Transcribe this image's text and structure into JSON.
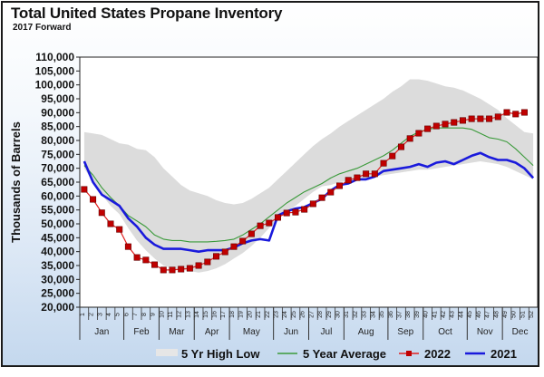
{
  "chart_data": {
    "type": "line",
    "title": "Total United States Propane Inventory",
    "subtitle": "2017 Forward",
    "xlabel": "",
    "ylabel": "Thousands of Barrels",
    "ylim": [
      20000,
      110000
    ],
    "yticks": [
      20000,
      25000,
      30000,
      35000,
      40000,
      45000,
      50000,
      55000,
      60000,
      65000,
      70000,
      75000,
      80000,
      85000,
      90000,
      95000,
      100000,
      105000,
      110000
    ],
    "ytick_labels": [
      "20,000",
      "25,000",
      "30,000",
      "35,000",
      "40,000",
      "45,000",
      "50,000",
      "55,000",
      "60,000",
      "65,000",
      "70,000",
      "75,000",
      "80,000",
      "85,000",
      "90,000",
      "95,000",
      "100,000",
      "105,000",
      "110,000"
    ],
    "x_weeks": [
      1,
      2,
      3,
      4,
      5,
      6,
      7,
      8,
      9,
      10,
      11,
      12,
      13,
      14,
      15,
      16,
      17,
      18,
      19,
      20,
      21,
      22,
      23,
      24,
      25,
      26,
      27,
      28,
      29,
      30,
      31,
      32,
      33,
      34,
      35,
      36,
      37,
      38,
      39,
      40,
      41,
      42,
      43,
      44,
      45,
      46,
      47,
      48,
      49,
      50,
      51,
      52
    ],
    "months": [
      {
        "label": "Jan",
        "start_week": 1,
        "end_week": 5
      },
      {
        "label": "Feb",
        "start_week": 6,
        "end_week": 9
      },
      {
        "label": "Mar",
        "start_week": 10,
        "end_week": 13
      },
      {
        "label": "Apr",
        "start_week": 14,
        "end_week": 17
      },
      {
        "label": "May",
        "start_week": 18,
        "end_week": 22
      },
      {
        "label": "Jun",
        "start_week": 23,
        "end_week": 26
      },
      {
        "label": "Jul",
        "start_week": 27,
        "end_week": 30
      },
      {
        "label": "Aug",
        "start_week": 31,
        "end_week": 35
      },
      {
        "label": "Sep",
        "start_week": 36,
        "end_week": 39
      },
      {
        "label": "Oct",
        "start_week": 40,
        "end_week": 44
      },
      {
        "label": "Nov",
        "start_week": 45,
        "end_week": 48
      },
      {
        "label": "Dec",
        "start_week": 49,
        "end_week": 52
      }
    ],
    "grid": false,
    "legend_position": "bottom",
    "series": [
      {
        "name": "5 Yr High Low",
        "kind": "band",
        "color": "#dcdcdc",
        "high": [
          83000,
          82500,
          82000,
          80500,
          79000,
          78500,
          77000,
          76500,
          74000,
          70000,
          67000,
          64000,
          62000,
          61000,
          60000,
          58500,
          57500,
          57000,
          57500,
          59000,
          61000,
          63000,
          66000,
          69000,
          72000,
          75000,
          78000,
          80500,
          82500,
          85000,
          87000,
          89000,
          91000,
          93000,
          95000,
          97500,
          99500,
          102000,
          102000,
          101500,
          100500,
          99500,
          99000,
          98000,
          96500,
          95000,
          93000,
          91000,
          88000,
          85500,
          83000,
          82500
        ],
        "low": [
          70000,
          65000,
          60500,
          56500,
          53500,
          48500,
          44000,
          40500,
          37500,
          35000,
          34000,
          33500,
          33000,
          32500,
          33000,
          34000,
          35500,
          37500,
          39500,
          42000,
          45000,
          48500,
          51500,
          54500,
          56500,
          59000,
          61500,
          63500,
          64000,
          65000,
          65500,
          66000,
          66500,
          67000,
          67500,
          68000,
          68500,
          69000,
          69500,
          69500,
          70000,
          70500,
          71000,
          71500,
          72000,
          72500,
          72000,
          71500,
          70500,
          69000,
          67500,
          66000
        ]
      },
      {
        "name": "5 Year Average",
        "kind": "line",
        "color": "#3a9a3a",
        "values": [
          71000,
          67500,
          63000,
          59500,
          56500,
          53000,
          51000,
          49000,
          46000,
          44500,
          44000,
          44000,
          43500,
          43500,
          43500,
          43700,
          44000,
          44500,
          46000,
          48000,
          50000,
          52500,
          55000,
          57500,
          59500,
          61500,
          63000,
          64500,
          66500,
          68000,
          69000,
          70000,
          71500,
          73000,
          74500,
          76500,
          79000,
          81500,
          83000,
          84000,
          84500,
          84500,
          84500,
          84500,
          84000,
          82500,
          81000,
          80500,
          79500,
          77000,
          74000,
          71000
        ]
      },
      {
        "name": "2022",
        "kind": "line-marker",
        "color": "#e02020",
        "marker_color": "#c00000",
        "values": [
          62400,
          58800,
          54000,
          50000,
          48000,
          41800,
          37900,
          37000,
          35300,
          33400,
          33400,
          33700,
          34000,
          35000,
          36300,
          38300,
          39900,
          41800,
          43800,
          46400,
          49300,
          50300,
          52300,
          53900,
          54200,
          55200,
          57200,
          59400,
          61400,
          63700,
          65700,
          66600,
          68000,
          68000,
          71800,
          74400,
          77700,
          80700,
          82600,
          84200,
          85200,
          85900,
          86500,
          87200,
          87800,
          87800,
          87800,
          88500,
          90100,
          89500,
          90100,
          null
        ]
      },
      {
        "name": "2021",
        "kind": "line",
        "color": "#1a1adc",
        "values": [
          72500,
          65000,
          60500,
          58500,
          56500,
          52000,
          49000,
          45000,
          42500,
          41000,
          41000,
          41000,
          40500,
          40000,
          40500,
          40500,
          40500,
          41500,
          43000,
          44000,
          44500,
          44000,
          53000,
          54500,
          55500,
          56000,
          57500,
          59000,
          62000,
          64000,
          64500,
          66000,
          66000,
          67000,
          69000,
          69500,
          70000,
          70500,
          71500,
          70500,
          72000,
          72500,
          71500,
          73000,
          74500,
          75500,
          74000,
          73000,
          73000,
          72000,
          70000,
          66500
        ]
      }
    ]
  }
}
